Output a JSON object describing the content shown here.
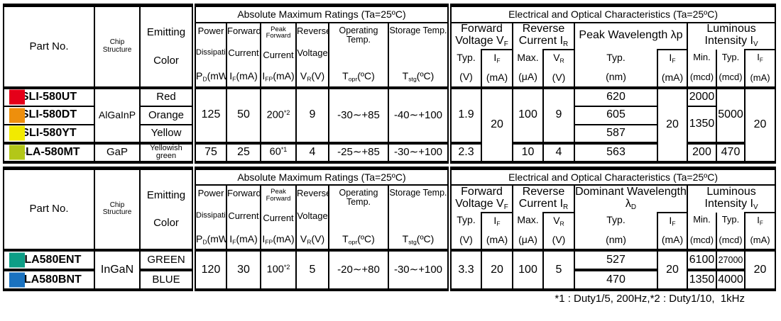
{
  "header": {
    "part_no": "Part No.",
    "chip_structure": "Chip Structure",
    "emitting1": "Emitting",
    "emitting2": "Color",
    "amr_title": "Absolute Maximum Ratings (Ta=25ºC)",
    "eoc_title": "Electrical and Optical Characteristics (Ta=25ºC)",
    "power1": "Power",
    "power2": "Dissipation",
    "power3": [
      {
        "t": "P"
      },
      {
        "s": "D"
      },
      {
        "t": "(mW)"
      }
    ],
    "forward1": "Forward",
    "forward2": "Current",
    "forward3": [
      {
        "t": "I"
      },
      {
        "s": "F"
      },
      {
        "t": "(mA)"
      }
    ],
    "peak1": "Peak Forward",
    "peak2": "Current",
    "peak3": [
      {
        "t": "I"
      },
      {
        "s": "FP"
      },
      {
        "t": "(mA)"
      }
    ],
    "reverse1": "Reverse",
    "reverse2": "Voltage",
    "reverse3": [
      {
        "t": "V"
      },
      {
        "s": "R"
      },
      {
        "t": "(V)"
      }
    ],
    "opr1": "Operating Temp.",
    "opr3": [
      {
        "t": "T"
      },
      {
        "s": "opr"
      },
      {
        "t": "(ºC)"
      }
    ],
    "stg1": "Storage Temp.",
    "stg3": [
      {
        "t": "T"
      },
      {
        "s": "stg"
      },
      {
        "t": "(ºC)"
      }
    ],
    "fv_group": [
      {
        "t": "Forward Voltage V"
      },
      {
        "s": "F"
      }
    ],
    "rc_group": [
      {
        "t": "Reverse Current I"
      },
      {
        "s": "R"
      }
    ],
    "li_group": [
      {
        "t": "Luminous Intensity I"
      },
      {
        "s": "V"
      }
    ],
    "typ": "Typ.",
    "min": "Min.",
    "max": "Max.",
    "u_v": "(V)",
    "u_ma": "(mA)",
    "u_ua": "(μA)",
    "u_nm": "(nm)",
    "u_mcd": "(mcd)",
    "if_sym": [
      {
        "t": "I"
      },
      {
        "s": "F"
      }
    ],
    "vr_sym": [
      {
        "t": "V"
      },
      {
        "s": "R"
      }
    ]
  },
  "t1": {
    "wavelength_group": [
      {
        "t": "Peak Wavelength λp"
      }
    ],
    "rows": [
      {
        "swatch": "#e50019",
        "part": "SLI-580UT",
        "color": "Red",
        "wavelength": "620"
      },
      {
        "swatch": "#ee8f0c",
        "part": "SLI-580DT",
        "color": "Orange",
        "wavelength": "605"
      },
      {
        "swatch": "#f2ea00",
        "part": "SLI-580YT",
        "color": "Yellow",
        "wavelength": "587"
      },
      {
        "swatch": "#b3c718",
        "part": "SLA-580MT",
        "color": "Yellowish green",
        "wavelength": "563"
      }
    ],
    "algainp": {
      "chip": "AlGaInP",
      "pd": "125",
      "if": "50",
      "ifp": [
        {
          "t": "200"
        },
        {
          "u": "*2"
        }
      ],
      "vr": "9",
      "opr": "-30∼+85",
      "stg": "-40∼+100",
      "fv_typ": "1.9",
      "rc_max": "100",
      "rc_vr": "9",
      "li_typ": "5000"
    },
    "gap": {
      "chip": "GaP",
      "pd": "75",
      "if": "25",
      "ifp": [
        {
          "t": "60"
        },
        {
          "u": "*1"
        }
      ],
      "vr": "4",
      "opr": "-25∼+85",
      "stg": "-30∼+100",
      "fv_typ": "2.3",
      "rc_max": "10",
      "rc_vr": "4",
      "li_min": "200",
      "li_typ": "470"
    },
    "li_min_row1": "2000",
    "li_min_rows23": "1350",
    "fv_if": "20",
    "wl_if": "20",
    "li_if": "20"
  },
  "t2": {
    "wavelength_group": [
      {
        "t": "Dominant Wavelength λ"
      },
      {
        "s": "D"
      }
    ],
    "rows": [
      {
        "swatch": "#0d9e86",
        "part": "SLA580ENT",
        "color": "GREEN",
        "wavelength": "527",
        "li_min": "6100",
        "li_typ": "27000"
      },
      {
        "swatch": "#1a72c0",
        "part": "SLA580BNT",
        "color": "BLUE",
        "wavelength": "470",
        "li_min": "1350",
        "li_typ": "4000"
      }
    ],
    "ingan": {
      "chip": "InGaN",
      "pd": "120",
      "if": "30",
      "ifp": [
        {
          "t": "100"
        },
        {
          "u": "*2"
        }
      ],
      "vr": "5",
      "opr": "-20∼+80",
      "stg": "-30∼+100",
      "fv_typ": "3.3",
      "fv_if": "20",
      "rc_max": "100",
      "rc_vr": "5",
      "wl_if": "20",
      "li_if": "20"
    }
  },
  "footnote": "*1 : Duty1/5, 200Hz,*2 : Duty1/10,  1kHz"
}
